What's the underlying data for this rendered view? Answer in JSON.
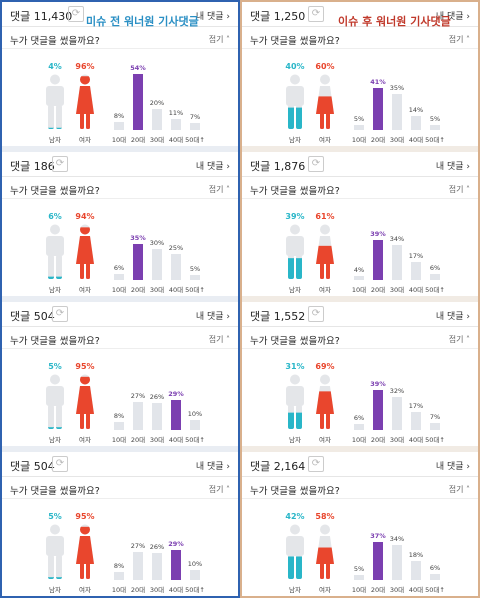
{
  "titles": {
    "before": "미슈 전 워너원 기사댓글",
    "after": "이슈 후 워너원 기사댓글"
  },
  "ui": {
    "my_comments": "내 댓글",
    "question": "누가 댓글을 썼을까요?",
    "fold": "접기",
    "male": "남자",
    "female": "여자",
    "age_labels": [
      "10대",
      "20대",
      "30대",
      "40대",
      "50대↑"
    ]
  },
  "colors": {
    "male": "#29b6c8",
    "female": "#e9462d",
    "highlight": "#7b3fb0",
    "bar": "#e2e5ea",
    "before_border": "#2f62b0",
    "after_border": "#d9b08c"
  },
  "chart_data": [
    {
      "type": "bar",
      "column": "before",
      "comment_count": "댓글 11,430",
      "gender": {
        "male": 4,
        "female": 96
      },
      "categories": [
        "10대",
        "20대",
        "30대",
        "40대",
        "50대↑"
      ],
      "values": [
        8,
        54,
        20,
        11,
        7
      ],
      "highlight": "20대"
    },
    {
      "type": "bar",
      "column": "before",
      "comment_count": "댓글 186",
      "gender": {
        "male": 6,
        "female": 94
      },
      "categories": [
        "10대",
        "20대",
        "30대",
        "40대",
        "50대↑"
      ],
      "values": [
        6,
        35,
        30,
        25,
        5
      ],
      "highlight": "20대"
    },
    {
      "type": "bar",
      "column": "before",
      "comment_count": "댓글 504",
      "gender": {
        "male": 5,
        "female": 95
      },
      "categories": [
        "10대",
        "20대",
        "30대",
        "40대",
        "50대↑"
      ],
      "values": [
        8,
        27,
        26,
        29,
        10
      ],
      "highlight": "40대"
    },
    {
      "type": "bar",
      "column": "before",
      "comment_count": "댓글 504",
      "gender": {
        "male": 5,
        "female": 95
      },
      "categories": [
        "10대",
        "20대",
        "30대",
        "40대",
        "50대↑"
      ],
      "values": [
        8,
        27,
        26,
        29,
        10
      ],
      "highlight": "40대"
    },
    {
      "type": "bar",
      "column": "after",
      "comment_count": "댓글 1,250",
      "gender": {
        "male": 40,
        "female": 60
      },
      "categories": [
        "10대",
        "20대",
        "30대",
        "40대",
        "50대↑"
      ],
      "values": [
        5,
        41,
        35,
        14,
        5
      ],
      "highlight": "20대"
    },
    {
      "type": "bar",
      "column": "after",
      "comment_count": "댓글 1,876",
      "gender": {
        "male": 39,
        "female": 61
      },
      "categories": [
        "10대",
        "20대",
        "30대",
        "40대",
        "50대↑"
      ],
      "values": [
        4,
        39,
        34,
        17,
        6
      ],
      "highlight": "20대"
    },
    {
      "type": "bar",
      "column": "after",
      "comment_count": "댓글 1,552",
      "gender": {
        "male": 31,
        "female": 69
      },
      "categories": [
        "10대",
        "20대",
        "30대",
        "40대",
        "50대↑"
      ],
      "values": [
        6,
        39,
        32,
        17,
        7
      ],
      "highlight": "20대"
    },
    {
      "type": "bar",
      "column": "after",
      "comment_count": "댓글 2,164",
      "gender": {
        "male": 42,
        "female": 58
      },
      "categories": [
        "10대",
        "20대",
        "30대",
        "40대",
        "50대↑"
      ],
      "values": [
        5,
        37,
        34,
        18,
        6
      ],
      "highlight": "20대"
    }
  ]
}
